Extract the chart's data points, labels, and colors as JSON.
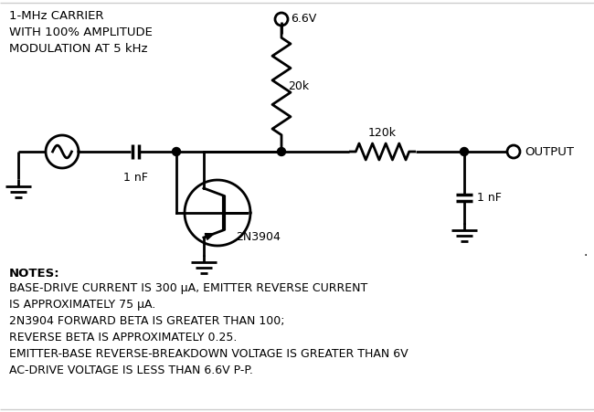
{
  "bg_color": "#ffffff",
  "line_color": "#000000",
  "lw": 2.0,
  "title_text": "1-MHz CARRIER\nWITH 100% AMPLITUDE\nMODULATION AT 5 kHz",
  "notes_bold": "NOTES:",
  "notes_text": "BASE-DRIVE CURRENT IS 300 μA, EMITTER REVERSE CURRENT\nIS APPROXIMATELY 75 μA.\n2N3904 FORWARD BETA IS GREATER THAN 100;\nREVERSE BETA IS APPROXIMATELY 0.25.\nEMITTER-BASE REVERSE-BREAKDOWN VOLTAGE IS GREATER THAN 6V\nAC-DRIVE VOLTAGE IS LESS THAN 6.6V P-P.",
  "vcc_label": "6.6V",
  "r1_label": "20k",
  "r2_label": "120k",
  "c1_label": "1 nF",
  "c2_label": "1 nF",
  "q1_label": "2N3904",
  "output_label": "OUTPUT",
  "dot_label": ".",
  "figw": 6.5,
  "figh": 4.51,
  "dpi": 100
}
